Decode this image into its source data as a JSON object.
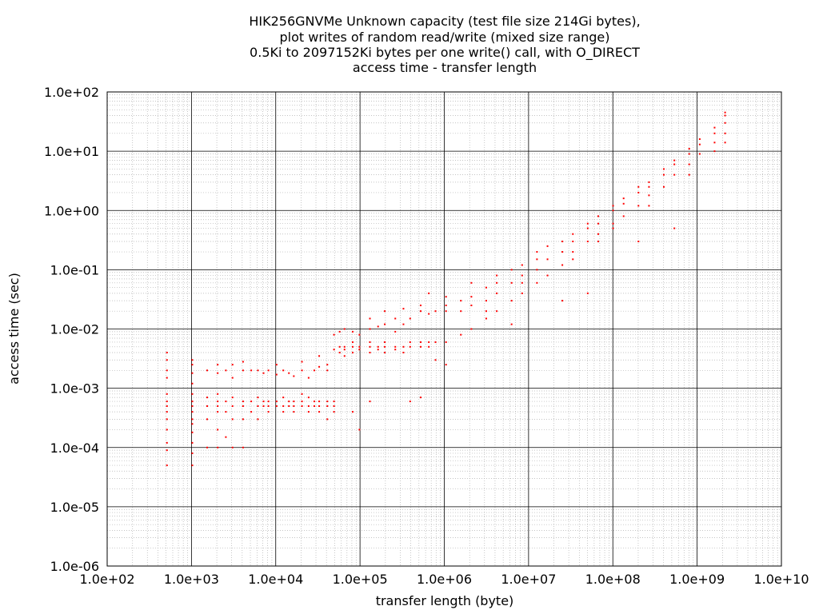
{
  "chart_data": {
    "type": "scatter",
    "title_lines": [
      "HIK256GNVMe Unknown capacity (test file size 214Gi bytes),",
      "plot writes of random read/write (mixed size range)",
      "0.5Ki to 2097152Ki bytes per one write() call, with O_DIRECT",
      "access time - transfer length"
    ],
    "xlabel": "transfer length (byte)",
    "ylabel": "access time (sec)",
    "x_scale": "log",
    "y_scale": "log",
    "xlim": [
      100,
      10000000000
    ],
    "ylim": [
      1e-06,
      100
    ],
    "grid": true,
    "x_ticks": [
      {
        "value": 100,
        "label": "1.0e+02"
      },
      {
        "value": 1000,
        "label": "1.0e+03"
      },
      {
        "value": 10000,
        "label": "1.0e+04"
      },
      {
        "value": 100000,
        "label": "1.0e+05"
      },
      {
        "value": 1000000,
        "label": "1.0e+06"
      },
      {
        "value": 10000000,
        "label": "1.0e+07"
      },
      {
        "value": 100000000,
        "label": "1.0e+08"
      },
      {
        "value": 1000000000,
        "label": "1.0e+09"
      },
      {
        "value": 10000000000,
        "label": "1.0e+10"
      }
    ],
    "y_ticks": [
      {
        "value": 100,
        "label": "1.0e+02"
      },
      {
        "value": 10,
        "label": "1.0e+01"
      },
      {
        "value": 1,
        "label": "1.0e+00"
      },
      {
        "value": 0.1,
        "label": "1.0e-01"
      },
      {
        "value": 0.01,
        "label": "1.0e-02"
      },
      {
        "value": 0.001,
        "label": "1.0e-03"
      },
      {
        "value": 0.0001,
        "label": "1.0e-04"
      },
      {
        "value": 1e-05,
        "label": "1.0e-05"
      },
      {
        "value": 1e-06,
        "label": "1.0e-06"
      }
    ],
    "series": [
      {
        "color": "#ff0000",
        "points": [
          [
            512,
            5e-05
          ],
          [
            512,
            9e-05
          ],
          [
            512,
            0.00012
          ],
          [
            512,
            0.0002
          ],
          [
            512,
            0.0003
          ],
          [
            512,
            0.0004
          ],
          [
            512,
            0.0005
          ],
          [
            512,
            0.0006
          ],
          [
            512,
            0.0008
          ],
          [
            512,
            0.0015
          ],
          [
            512,
            0.002
          ],
          [
            512,
            0.003
          ],
          [
            512,
            0.004
          ],
          [
            1024,
            5e-05
          ],
          [
            1024,
            8e-05
          ],
          [
            1024,
            0.00012
          ],
          [
            1024,
            0.00018
          ],
          [
            1024,
            0.00025
          ],
          [
            1024,
            0.0003
          ],
          [
            1024,
            0.0004
          ],
          [
            1024,
            0.0005
          ],
          [
            1024,
            0.0006
          ],
          [
            1024,
            0.0008
          ],
          [
            1024,
            0.0012
          ],
          [
            1024,
            0.0018
          ],
          [
            1024,
            0.0025
          ],
          [
            1024,
            0.003
          ],
          [
            1536,
            0.0001
          ],
          [
            1536,
            0.0003
          ],
          [
            1536,
            0.0005
          ],
          [
            1536,
            0.0007
          ],
          [
            1536,
            0.002
          ],
          [
            2048,
            0.0001
          ],
          [
            2048,
            0.0002
          ],
          [
            2048,
            0.0004
          ],
          [
            2048,
            0.0005
          ],
          [
            2048,
            0.0006
          ],
          [
            2048,
            0.0008
          ],
          [
            2048,
            0.0018
          ],
          [
            2048,
            0.0025
          ],
          [
            2560,
            0.00015
          ],
          [
            2560,
            0.0004
          ],
          [
            2560,
            0.0006
          ],
          [
            2560,
            0.002
          ],
          [
            3072,
            0.0001
          ],
          [
            3072,
            0.0003
          ],
          [
            3072,
            0.0005
          ],
          [
            3072,
            0.0007
          ],
          [
            3072,
            0.0015
          ],
          [
            3072,
            0.0025
          ],
          [
            4096,
            0.0001
          ],
          [
            4096,
            0.0003
          ],
          [
            4096,
            0.0005
          ],
          [
            4096,
            0.0006
          ],
          [
            4096,
            0.002
          ],
          [
            4096,
            0.0028
          ],
          [
            5120,
            0.0004
          ],
          [
            5120,
            0.0006
          ],
          [
            5120,
            0.002
          ],
          [
            6144,
            0.0003
          ],
          [
            6144,
            0.0005
          ],
          [
            6144,
            0.0007
          ],
          [
            6144,
            0.002
          ],
          [
            7168,
            0.0005
          ],
          [
            7168,
            0.0006
          ],
          [
            7168,
            0.0018
          ],
          [
            8192,
            0.0004
          ],
          [
            8192,
            0.0005
          ],
          [
            8192,
            0.0006
          ],
          [
            8192,
            0.002
          ],
          [
            10240,
            0.0005
          ],
          [
            10240,
            0.0006
          ],
          [
            10240,
            0.0017
          ],
          [
            10240,
            0.0025
          ],
          [
            12288,
            0.0004
          ],
          [
            12288,
            0.0005
          ],
          [
            12288,
            0.0007
          ],
          [
            12288,
            0.002
          ],
          [
            14336,
            0.0005
          ],
          [
            14336,
            0.0006
          ],
          [
            14336,
            0.0018
          ],
          [
            16384,
            0.0004
          ],
          [
            16384,
            0.0005
          ],
          [
            16384,
            0.0006
          ],
          [
            16384,
            0.0016
          ],
          [
            20480,
            0.0005
          ],
          [
            20480,
            0.0006
          ],
          [
            20480,
            0.0008
          ],
          [
            20480,
            0.002
          ],
          [
            20480,
            0.0028
          ],
          [
            24576,
            0.0004
          ],
          [
            24576,
            0.0005
          ],
          [
            24576,
            0.0007
          ],
          [
            24576,
            0.0015
          ],
          [
            28672,
            0.0005
          ],
          [
            28672,
            0.0006
          ],
          [
            28672,
            0.002
          ],
          [
            32768,
            0.0004
          ],
          [
            32768,
            0.0005
          ],
          [
            32768,
            0.0006
          ],
          [
            32768,
            0.0023
          ],
          [
            32768,
            0.0035
          ],
          [
            40960,
            0.0003
          ],
          [
            40960,
            0.0005
          ],
          [
            40960,
            0.0006
          ],
          [
            40960,
            0.002
          ],
          [
            40960,
            0.0025
          ],
          [
            49152,
            0.0004
          ],
          [
            49152,
            0.0005
          ],
          [
            49152,
            0.0006
          ],
          [
            49152,
            0.0045
          ],
          [
            49152,
            0.008
          ],
          [
            57344,
            0.005
          ],
          [
            57344,
            0.004
          ],
          [
            57344,
            0.009
          ],
          [
            65536,
            0.0045
          ],
          [
            65536,
            0.005
          ],
          [
            65536,
            0.0035
          ],
          [
            65536,
            0.01
          ],
          [
            81920,
            0.004
          ],
          [
            81920,
            0.005
          ],
          [
            81920,
            0.006
          ],
          [
            81920,
            0.009
          ],
          [
            81920,
            0.0004
          ],
          [
            98304,
            0.0045
          ],
          [
            98304,
            0.005
          ],
          [
            98304,
            0.008
          ],
          [
            98304,
            0.0002
          ],
          [
            131072,
            0.004
          ],
          [
            131072,
            0.005
          ],
          [
            131072,
            0.006
          ],
          [
            131072,
            0.01
          ],
          [
            131072,
            0.015
          ],
          [
            131072,
            0.0006
          ],
          [
            163840,
            0.0045
          ],
          [
            163840,
            0.005
          ],
          [
            163840,
            0.011
          ],
          [
            196608,
            0.004
          ],
          [
            196608,
            0.005
          ],
          [
            196608,
            0.006
          ],
          [
            196608,
            0.012
          ],
          [
            196608,
            0.02
          ],
          [
            262144,
            0.0045
          ],
          [
            262144,
            0.005
          ],
          [
            262144,
            0.009
          ],
          [
            262144,
            0.015
          ],
          [
            327680,
            0.004
          ],
          [
            327680,
            0.005
          ],
          [
            327680,
            0.012
          ],
          [
            327680,
            0.022
          ],
          [
            393216,
            0.005
          ],
          [
            393216,
            0.006
          ],
          [
            393216,
            0.015
          ],
          [
            393216,
            0.0006
          ],
          [
            524288,
            0.005
          ],
          [
            524288,
            0.006
          ],
          [
            524288,
            0.02
          ],
          [
            524288,
            0.025
          ],
          [
            524288,
            0.0007
          ],
          [
            655360,
            0.005
          ],
          [
            655360,
            0.006
          ],
          [
            655360,
            0.018
          ],
          [
            655360,
            0.04
          ],
          [
            786432,
            0.006
          ],
          [
            786432,
            0.02
          ],
          [
            786432,
            0.003
          ],
          [
            1048576,
            0.006
          ],
          [
            1048576,
            0.02
          ],
          [
            1048576,
            0.025
          ],
          [
            1048576,
            0.035
          ],
          [
            1048576,
            0.0025
          ],
          [
            1572864,
            0.008
          ],
          [
            1572864,
            0.02
          ],
          [
            1572864,
            0.03
          ],
          [
            2097152,
            0.01
          ],
          [
            2097152,
            0.025
          ],
          [
            2097152,
            0.035
          ],
          [
            2097152,
            0.06
          ],
          [
            3145728,
            0.015
          ],
          [
            3145728,
            0.03
          ],
          [
            3145728,
            0.05
          ],
          [
            3145728,
            0.02
          ],
          [
            4194304,
            0.02
          ],
          [
            4194304,
            0.04
          ],
          [
            4194304,
            0.06
          ],
          [
            4194304,
            0.08
          ],
          [
            6291456,
            0.03
          ],
          [
            6291456,
            0.06
          ],
          [
            6291456,
            0.1
          ],
          [
            6291456,
            0.012
          ],
          [
            8388608,
            0.04
          ],
          [
            8388608,
            0.08
          ],
          [
            8388608,
            0.12
          ],
          [
            8388608,
            0.06
          ],
          [
            12582912,
            0.06
          ],
          [
            12582912,
            0.1
          ],
          [
            12582912,
            0.15
          ],
          [
            12582912,
            0.2
          ],
          [
            16777216,
            0.08
          ],
          [
            16777216,
            0.15
          ],
          [
            16777216,
            0.25
          ],
          [
            25165824,
            0.12
          ],
          [
            25165824,
            0.2
          ],
          [
            25165824,
            0.3
          ],
          [
            25165824,
            0.03
          ],
          [
            33554432,
            0.2
          ],
          [
            33554432,
            0.3
          ],
          [
            33554432,
            0.4
          ],
          [
            33554432,
            0.15
          ],
          [
            50331648,
            0.3
          ],
          [
            50331648,
            0.5
          ],
          [
            50331648,
            0.6
          ],
          [
            50331648,
            0.04
          ],
          [
            67108864,
            0.4
          ],
          [
            67108864,
            0.6
          ],
          [
            67108864,
            0.8
          ],
          [
            67108864,
            0.3
          ],
          [
            100663296,
            0.6
          ],
          [
            100663296,
            1.0
          ],
          [
            100663296,
            1.2
          ],
          [
            100663296,
            0.5
          ],
          [
            134217728,
            0.8
          ],
          [
            134217728,
            1.3
          ],
          [
            134217728,
            1.6
          ],
          [
            201326592,
            1.2
          ],
          [
            201326592,
            2.0
          ],
          [
            201326592,
            2.5
          ],
          [
            201326592,
            0.3
          ],
          [
            268435456,
            1.8
          ],
          [
            268435456,
            2.5
          ],
          [
            268435456,
            3.0
          ],
          [
            268435456,
            1.2
          ],
          [
            402653184,
            2.5
          ],
          [
            402653184,
            4.0
          ],
          [
            402653184,
            5.0
          ],
          [
            536870912,
            4.0
          ],
          [
            536870912,
            6.0
          ],
          [
            536870912,
            7.0
          ],
          [
            536870912,
            0.5
          ],
          [
            805306368,
            6.0
          ],
          [
            805306368,
            9.0
          ],
          [
            805306368,
            11.0
          ],
          [
            805306368,
            4.0
          ],
          [
            1073741824,
            9.0
          ],
          [
            1073741824,
            13.0
          ],
          [
            1073741824,
            16.0
          ],
          [
            1610612736,
            14.0
          ],
          [
            1610612736,
            20.0
          ],
          [
            1610612736,
            25.0
          ],
          [
            1610612736,
            10.0
          ],
          [
            2147483648,
            20.0
          ],
          [
            2147483648,
            30.0
          ],
          [
            2147483648,
            40.0
          ],
          [
            2147483648,
            14.0
          ],
          [
            2147483648,
            45.0
          ]
        ]
      }
    ]
  }
}
